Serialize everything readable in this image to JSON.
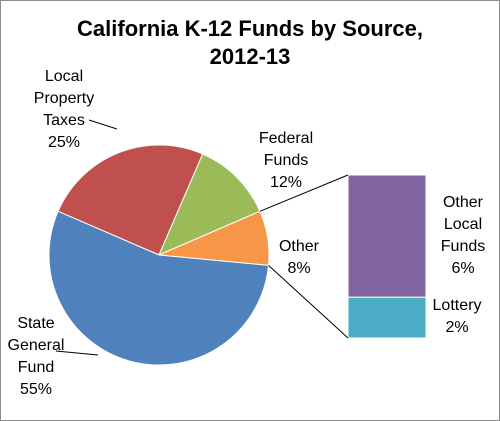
{
  "chart_data": {
    "type": "bar-of-pie",
    "title": [
      "California K-12 Funds by Source,",
      "2012-13"
    ],
    "colors": {
      "state": "#4F81BD",
      "local": "#C0504D",
      "federal": "#9BBB59",
      "other": "#F79646",
      "other_local": "#8064A2",
      "lottery": "#4BACC6"
    },
    "pie": [
      {
        "key": "local",
        "lines": [
          "Local",
          "Property",
          "Taxes",
          "25%"
        ],
        "value": 25
      },
      {
        "key": "federal",
        "lines": [
          "Federal",
          "Funds",
          "12%"
        ],
        "value": 12
      },
      {
        "key": "other",
        "lines": [
          "Other",
          "8%"
        ],
        "value": 8
      },
      {
        "key": "state",
        "lines": [
          "State",
          "General",
          "Fund",
          "55%"
        ],
        "value": 55
      }
    ],
    "breakdown_of": "other",
    "bar": [
      {
        "key": "other_local",
        "lines": [
          "Other",
          "Local",
          "Funds",
          "6%"
        ],
        "value": 6
      },
      {
        "key": "lottery",
        "lines": [
          "Lottery",
          "2%"
        ],
        "value": 2
      }
    ]
  }
}
